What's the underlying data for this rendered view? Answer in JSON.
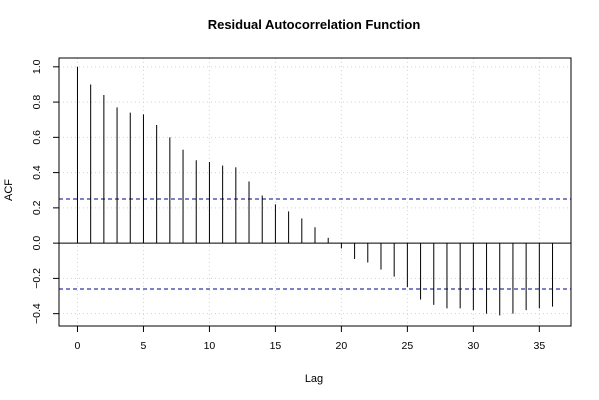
{
  "chart_data": {
    "type": "bar",
    "title": "Residual Autocorrelation Function",
    "xlabel": "Lag",
    "ylabel": "ACF",
    "xlim": [
      -1.4,
      37.4
    ],
    "ylim": [
      -0.47,
      1.05
    ],
    "x_ticks": [
      0,
      5,
      10,
      15,
      20,
      25,
      30,
      35
    ],
    "y_ticks": [
      -0.4,
      -0.2,
      0.0,
      0.2,
      0.4,
      0.6,
      0.8,
      1.0
    ],
    "y_tick_labels": [
      "−0.4",
      "−0.2",
      "0.0",
      "0.2",
      "0.4",
      "0.6",
      "0.8",
      "1.0"
    ],
    "grid": true,
    "confidence_bounds": [
      0.25,
      -0.26
    ],
    "colors": {
      "bars": "#000000",
      "bounds": "#00008b",
      "grid": "#d3d3d3",
      "zero_line": "#000000"
    },
    "lags": [
      0,
      1,
      2,
      3,
      4,
      5,
      6,
      7,
      8,
      9,
      10,
      11,
      12,
      13,
      14,
      15,
      16,
      17,
      18,
      19,
      20,
      21,
      22,
      23,
      24,
      25,
      26,
      27,
      28,
      29,
      30,
      31,
      32,
      33,
      34,
      35,
      36
    ],
    "values": [
      1.0,
      0.9,
      0.84,
      0.77,
      0.74,
      0.73,
      0.67,
      0.6,
      0.53,
      0.47,
      0.46,
      0.44,
      0.43,
      0.35,
      0.27,
      0.22,
      0.18,
      0.14,
      0.09,
      0.03,
      -0.03,
      -0.09,
      -0.11,
      -0.15,
      -0.19,
      -0.25,
      -0.32,
      -0.35,
      -0.37,
      -0.37,
      -0.38,
      -0.4,
      -0.41,
      -0.4,
      -0.38,
      -0.37,
      -0.36
    ]
  }
}
